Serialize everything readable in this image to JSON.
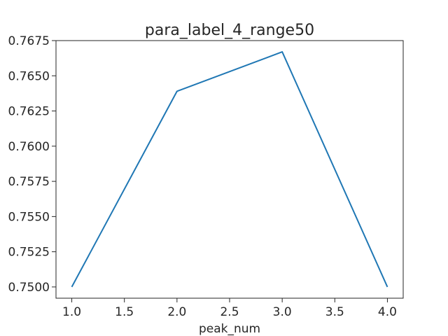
{
  "chart_data": {
    "type": "line",
    "title": "para_label_4_range50",
    "xlabel": "peak_num",
    "ylabel": "",
    "xlim": [
      0.85,
      4.15
    ],
    "ylim": [
      0.7492,
      0.7675
    ],
    "xticks": [
      1.0,
      1.5,
      2.0,
      2.5,
      3.0,
      3.5,
      4.0
    ],
    "xtick_labels": [
      "1.0",
      "1.5",
      "2.0",
      "2.5",
      "3.0",
      "3.5",
      "4.0"
    ],
    "yticks": [
      0.75,
      0.7525,
      0.755,
      0.7575,
      0.76,
      0.7625,
      0.765,
      0.7675
    ],
    "ytick_labels": [
      "0.7500",
      "0.7525",
      "0.7550",
      "0.7575",
      "0.7600",
      "0.7625",
      "0.7650",
      "0.7675"
    ],
    "grid": false,
    "series": [
      {
        "x": [
          1.0,
          2.0,
          3.0,
          4.0
        ],
        "y": [
          0.75,
          0.7639,
          0.7667,
          0.75
        ],
        "color": "#1f77b4"
      }
    ]
  }
}
